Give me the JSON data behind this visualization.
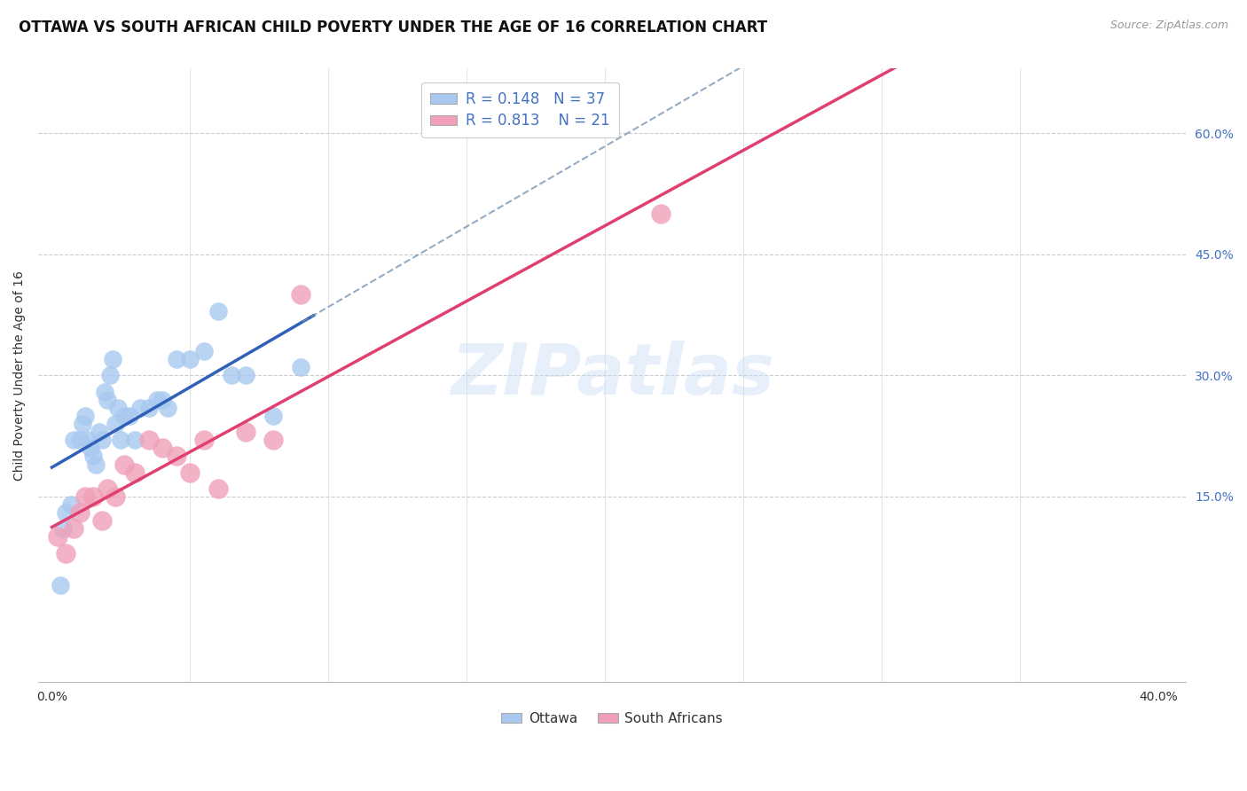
{
  "title": "OTTAWA VS SOUTH AFRICAN CHILD POVERTY UNDER THE AGE OF 16 CORRELATION CHART",
  "source": "Source: ZipAtlas.com",
  "ylabel": "Child Poverty Under the Age of 16",
  "watermark": "ZIPatlas",
  "ottawa_r": "0.148",
  "ottawa_n": "37",
  "sa_r": "0.813",
  "sa_n": "21",
  "ottawa_color": "#a8c8f0",
  "ottawa_line_color": "#3060b8",
  "sa_color": "#f0a0b8",
  "sa_line_color": "#e04070",
  "ottawa_x": [
    0.3,
    0.5,
    0.7,
    0.8,
    1.0,
    1.1,
    1.2,
    1.3,
    1.4,
    1.5,
    1.6,
    1.7,
    1.8,
    1.9,
    2.0,
    2.1,
    2.2,
    2.3,
    2.4,
    2.5,
    2.6,
    2.8,
    3.0,
    3.2,
    3.5,
    3.8,
    4.0,
    4.2,
    4.5,
    5.0,
    5.5,
    6.0,
    6.5,
    7.0,
    8.0,
    9.0,
    0.4
  ],
  "ottawa_y": [
    4.0,
    13.0,
    14.0,
    22.0,
    22.0,
    24.0,
    25.0,
    22.0,
    21.0,
    20.0,
    19.0,
    23.0,
    22.0,
    28.0,
    27.0,
    30.0,
    32.0,
    24.0,
    26.0,
    22.0,
    25.0,
    25.0,
    22.0,
    26.0,
    26.0,
    27.0,
    27.0,
    26.0,
    32.0,
    32.0,
    33.0,
    38.0,
    30.0,
    30.0,
    25.0,
    31.0,
    11.0
  ],
  "sa_x": [
    0.2,
    0.5,
    0.8,
    1.0,
    1.2,
    1.5,
    1.8,
    2.0,
    2.3,
    2.6,
    3.0,
    3.5,
    4.0,
    4.5,
    5.0,
    5.5,
    6.0,
    7.0,
    8.0,
    9.0,
    22.0
  ],
  "sa_y": [
    10.0,
    8.0,
    11.0,
    13.0,
    15.0,
    15.0,
    12.0,
    16.0,
    15.0,
    19.0,
    18.0,
    22.0,
    21.0,
    20.0,
    18.0,
    22.0,
    16.0,
    23.0,
    22.0,
    40.0,
    50.0
  ],
  "xlim": [
    -0.5,
    41.0
  ],
  "ylim": [
    -8.0,
    68.0
  ],
  "yticks_right": [
    15.0,
    30.0,
    45.0,
    60.0
  ],
  "ytick_labels_right": [
    "15.0%",
    "30.0%",
    "45.0%",
    "60.0%"
  ],
  "xtick_vals": [
    0,
    5,
    10,
    15,
    20,
    25,
    30,
    35,
    40
  ],
  "xtick_labels": [
    "0.0%",
    "",
    "",
    "",
    "",
    "",
    "",
    "",
    "40.0%"
  ],
  "background_color": "#ffffff",
  "grid_color": "#cccccc",
  "title_fontsize": 12,
  "axis_fontsize": 10
}
